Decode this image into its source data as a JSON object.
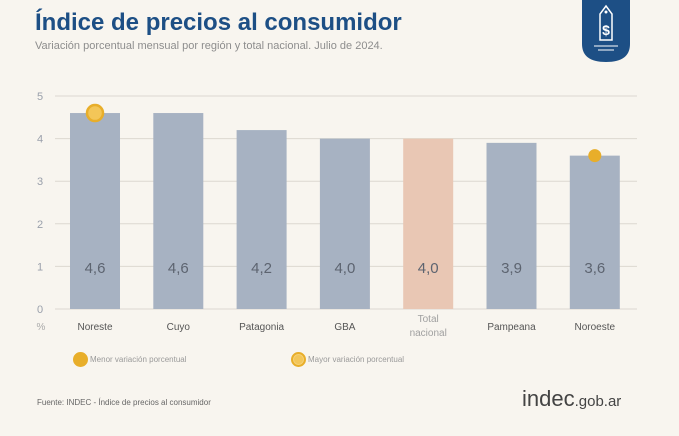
{
  "header": {
    "title": "Índice de precios al consumidor",
    "subtitle": "Variación porcentual mensual por región y total nacional. Julio de 2024."
  },
  "chart_data": {
    "type": "bar",
    "categories": [
      "Noreste",
      "Cuyo",
      "Patagonia",
      "GBA",
      "Total nacional",
      "Pampeana",
      "Noroeste"
    ],
    "values": [
      4.6,
      4.6,
      4.2,
      4.0,
      4.0,
      3.9,
      3.6
    ],
    "value_labels": [
      "4,6",
      "4,6",
      "4,2",
      "4,0",
      "4,0",
      "3,9",
      "3,6"
    ],
    "ylim": [
      0,
      5
    ],
    "yticks": [
      0,
      1,
      2,
      3,
      4,
      5
    ],
    "ylabel": "%",
    "grid": true,
    "colors": {
      "bar": "#a7b2c2",
      "highlight": "#e9c7b4",
      "marker": "#e8ae2a",
      "axis_label": "#9aa0ab"
    },
    "highlight_category": "Total nacional",
    "markers": [
      {
        "category": "Noreste",
        "type": "max"
      },
      {
        "category": "Noroeste",
        "type": "min"
      }
    ]
  },
  "legend": {
    "min_label": "Menor variación porcentual",
    "max_label": "Mayor variación porcentual"
  },
  "footer": {
    "source": "Fuente: INDEC - Índice de precios al consumidor",
    "logo_main": "indec",
    "logo_domain": ".gob.ar"
  },
  "icons": {
    "badge": "price-tag-dollar-icon"
  }
}
